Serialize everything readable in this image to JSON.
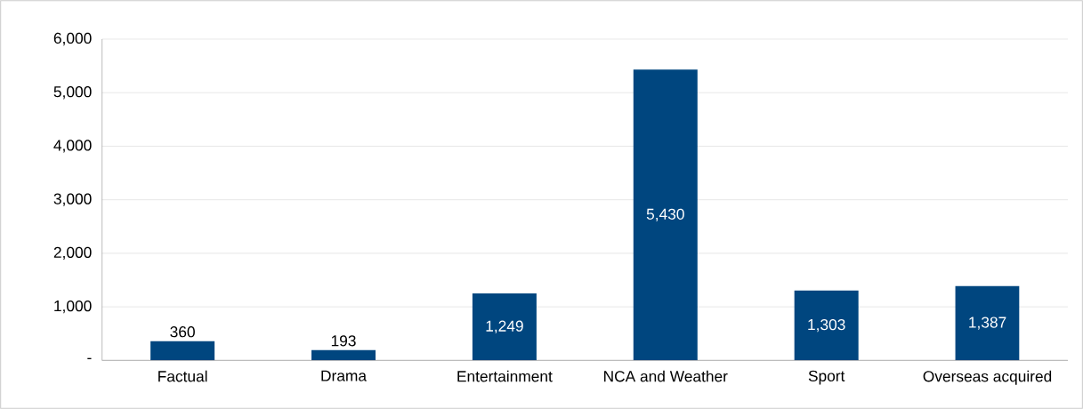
{
  "chart_data": {
    "type": "bar",
    "categories": [
      "Factual",
      "Drama",
      "Entertainment",
      "NCA and Weather",
      "Sport",
      "Overseas acquired"
    ],
    "values": [
      360,
      193,
      1249,
      5430,
      1303,
      1387
    ],
    "value_labels": [
      "360",
      "193",
      "1,249",
      "5,430",
      "1,303",
      "1,387"
    ],
    "color": "#00467f",
    "ylim": [
      0,
      6000
    ],
    "yticks": [
      {
        "value": 0,
        "label": "-"
      },
      {
        "value": 1000,
        "label": "1,000"
      },
      {
        "value": 2000,
        "label": "2,000"
      },
      {
        "value": 3000,
        "label": "3,000"
      },
      {
        "value": 4000,
        "label": "4,000"
      },
      {
        "value": 5000,
        "label": "5,000"
      },
      {
        "value": 6000,
        "label": "6,000"
      }
    ],
    "grid": "y"
  }
}
